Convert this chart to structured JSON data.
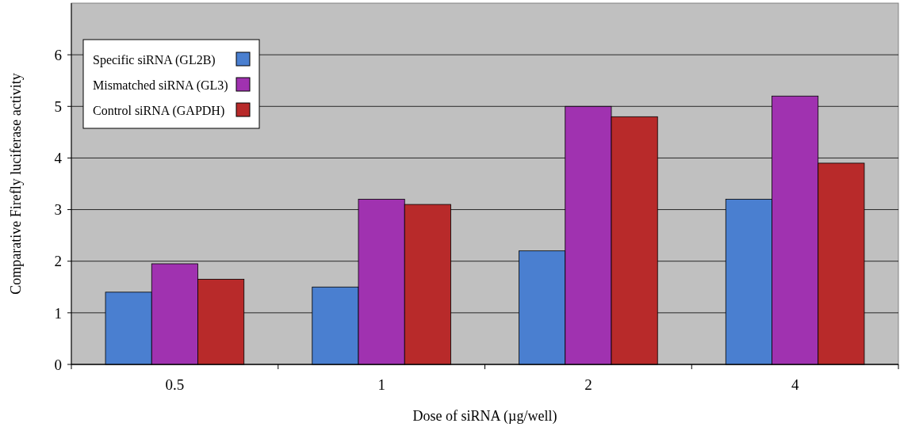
{
  "chart_data": {
    "type": "bar",
    "xlabel": "Dose of siRNA (µg/well)",
    "ylabel": "Comparative Firefly luciferase activity",
    "categories": [
      "0.5",
      "1",
      "2",
      "4"
    ],
    "series": [
      {
        "name": "Specific siRNA (GL2B)",
        "color": "#4a7fd0",
        "values": [
          1.4,
          1.5,
          2.2,
          3.2
        ]
      },
      {
        "name": "Mismatched siRNA (GL3)",
        "color": "#a032b0",
        "values": [
          1.95,
          3.2,
          5.0,
          5.2
        ]
      },
      {
        "name": "Control siRNA (GAPDH)",
        "color": "#b82a2a",
        "values": [
          1.65,
          3.1,
          4.8,
          3.9
        ]
      }
    ],
    "ylim": [
      0,
      7
    ],
    "yticks": [
      0,
      1,
      2,
      3,
      4,
      5,
      6
    ],
    "grid": "y",
    "legend": "top left"
  }
}
